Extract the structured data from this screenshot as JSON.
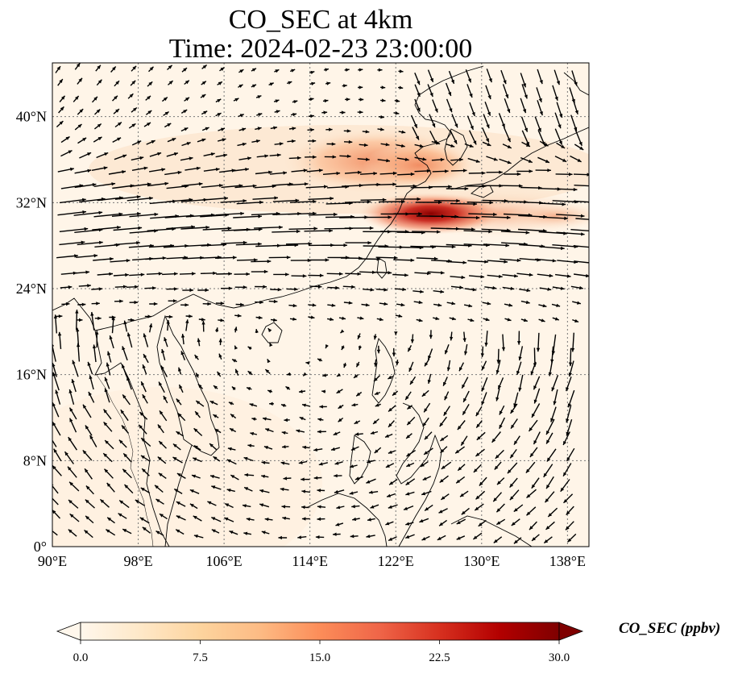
{
  "title": {
    "line1": "CO_SEC at 4km",
    "line2": "Time: 2024-02-23 23:00:00"
  },
  "map": {
    "extent": {
      "lon": [
        90,
        140
      ],
      "lat": [
        0,
        45
      ]
    },
    "lon_ticks": [
      "90°E",
      "98°E",
      "106°E",
      "114°E",
      "122°E",
      "130°E",
      "138°E"
    ],
    "lat_ticks": [
      "0°",
      "8°N",
      "16°N",
      "24°N",
      "32°N",
      "40°N"
    ],
    "gridlines": true,
    "field": "CO_SEC",
    "height": "4km"
  },
  "colorbar": {
    "label": "CO_SEC (ppbv)",
    "ticks": [
      "0.0",
      "7.5",
      "15.0",
      "22.5",
      "30.0"
    ],
    "range": [
      0,
      30
    ],
    "colormap": "OrRd",
    "colors": [
      "#fff7ec",
      "#fee8c8",
      "#fdd49e",
      "#fdbb84",
      "#fc8d59",
      "#ef6548",
      "#d7301f",
      "#b30000",
      "#7f0000"
    ],
    "extend": "both"
  }
}
